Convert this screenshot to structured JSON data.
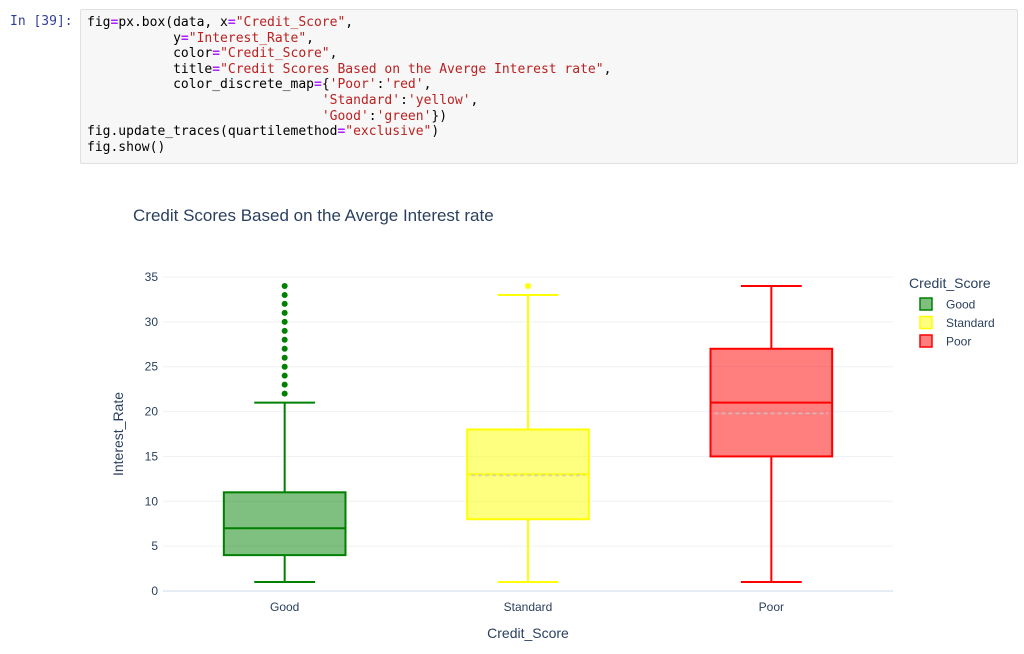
{
  "cell": {
    "prompt": "In [39]:",
    "code_lines": [
      [
        {
          "t": "fig"
        },
        {
          "t": "=",
          "c": "op"
        },
        {
          "t": "px.box(data, x"
        },
        {
          "t": "=",
          "c": "op"
        },
        {
          "t": "\"Credit_Score\"",
          "c": "str"
        },
        {
          "t": ","
        }
      ],
      [
        {
          "t": "           y"
        },
        {
          "t": "=",
          "c": "op"
        },
        {
          "t": "\"Interest_Rate\"",
          "c": "str"
        },
        {
          "t": ","
        }
      ],
      [
        {
          "t": "           color"
        },
        {
          "t": "=",
          "c": "op"
        },
        {
          "t": "\"Credit_Score\"",
          "c": "str"
        },
        {
          "t": ","
        }
      ],
      [
        {
          "t": "           title"
        },
        {
          "t": "=",
          "c": "op"
        },
        {
          "t": "\"Credit Scores Based on the Averge Interest rate\"",
          "c": "str"
        },
        {
          "t": ","
        }
      ],
      [
        {
          "t": "           color_discrete_map"
        },
        {
          "t": "=",
          "c": "op"
        },
        {
          "t": "{"
        },
        {
          "t": "'Poor'",
          "c": "str"
        },
        {
          "t": ":"
        },
        {
          "t": "'red'",
          "c": "str"
        },
        {
          "t": ","
        }
      ],
      [
        {
          "t": "                              "
        },
        {
          "t": "'Standard'",
          "c": "str"
        },
        {
          "t": ":"
        },
        {
          "t": "'yellow'",
          "c": "str"
        },
        {
          "t": ","
        }
      ],
      [
        {
          "t": "                              "
        },
        {
          "t": "'Good'",
          "c": "str"
        },
        {
          "t": ":"
        },
        {
          "t": "'green'",
          "c": "str"
        },
        {
          "t": "})"
        }
      ],
      [
        {
          "t": "fig.update_traces(quartilemethod"
        },
        {
          "t": "=",
          "c": "op"
        },
        {
          "t": "\"exclusive\"",
          "c": "str"
        },
        {
          "t": ")"
        }
      ],
      [
        {
          "t": "fig.show()"
        }
      ]
    ]
  },
  "chart_data": {
    "type": "box",
    "title": "Credit Scores Based on the Averge Interest rate",
    "xlabel": "Credit_Score",
    "ylabel": "Interest_Rate",
    "ylim": [
      0,
      35
    ],
    "yticks": [
      0,
      5,
      10,
      15,
      20,
      25,
      30,
      35
    ],
    "categories": [
      "Good",
      "Standard",
      "Poor"
    ],
    "legend_title": "Credit_Score",
    "legend_position": "top-right",
    "grid": true,
    "series": [
      {
        "name": "Good",
        "color": "#008000",
        "fill": "rgba(0,128,0,0.5)",
        "min": 1,
        "q1": 4,
        "median": 7,
        "q3": 11,
        "max": 21,
        "mean": null,
        "outliers": [
          22,
          23,
          24,
          25,
          26,
          27,
          28,
          29,
          30,
          31,
          32,
          33,
          34
        ]
      },
      {
        "name": "Standard",
        "color": "#ffff00",
        "fill": "rgba(255,255,0,0.5)",
        "min": 1,
        "q1": 8,
        "median": 13,
        "q3": 18,
        "max": 33,
        "mean": 12.9,
        "outliers": [
          34
        ]
      },
      {
        "name": "Poor",
        "color": "#ff0000",
        "fill": "rgba(255,0,0,0.5)",
        "min": 1,
        "q1": 15,
        "median": 21,
        "q3": 27,
        "max": 34,
        "mean": 19.8,
        "outliers": []
      }
    ]
  }
}
